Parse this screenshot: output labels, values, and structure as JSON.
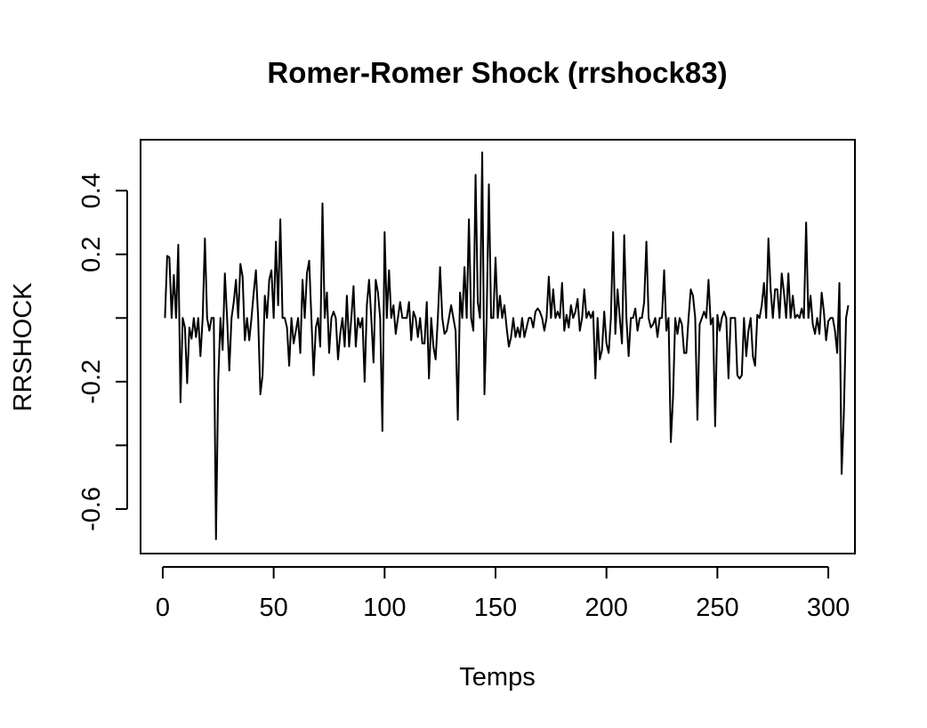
{
  "chart_data": {
    "type": "line",
    "title": "Romer-Romer Shock (rrshock83)",
    "xlabel": "Temps",
    "ylabel": "RRSHOCK",
    "xlim": [
      -10,
      312
    ],
    "ylim": [
      -0.74,
      0.56
    ],
    "x_ticks": [
      0,
      50,
      100,
      150,
      200,
      250,
      300
    ],
    "x_tick_labels": [
      "0",
      "50",
      "100",
      "150",
      "200",
      "250",
      "300"
    ],
    "y_ticks": [
      -0.6,
      -0.4,
      -0.2,
      0.0,
      0.2,
      0.4
    ],
    "y_tick_labels": [
      "-0.6",
      "",
      "-0.2",
      "",
      "0.2",
      "0.4"
    ],
    "grid": false,
    "legend": "none",
    "line_color": "#000000",
    "x_start": 1,
    "series": [
      {
        "values": [
          0.0,
          0.195,
          0.19,
          0.0,
          0.135,
          0.0,
          0.23,
          -0.265,
          0.0,
          -0.03,
          -0.205,
          -0.03,
          -0.065,
          0.0,
          -0.06,
          0.0,
          -0.12,
          0.0,
          0.25,
          0.0,
          -0.04,
          0.0,
          0.0,
          -0.695,
          -0.2,
          0.0,
          -0.1,
          0.14,
          0.0,
          -0.165,
          0.0,
          0.05,
          0.12,
          0.0,
          0.17,
          0.13,
          -0.07,
          0.0,
          -0.07,
          0.0,
          0.08,
          0.15,
          0.0,
          -0.24,
          -0.18,
          0.07,
          0.0,
          0.12,
          0.15,
          0.0,
          0.24,
          0.04,
          0.31,
          0.0,
          0.0,
          -0.03,
          -0.15,
          0.0,
          -0.08,
          -0.04,
          0.0,
          -0.11,
          0.12,
          0.0,
          0.14,
          0.18,
          0.0,
          -0.18,
          -0.03,
          0.0,
          -0.09,
          0.36,
          0.0,
          0.08,
          -0.11,
          0.0,
          0.02,
          0.0,
          -0.13,
          -0.05,
          0.0,
          -0.09,
          0.07,
          -0.09,
          0.0,
          0.1,
          -0.09,
          0.0,
          -0.03,
          0.0,
          -0.2,
          0.04,
          0.12,
          0.0,
          -0.14,
          0.12,
          0.08,
          0.0,
          -0.355,
          0.27,
          0.0,
          0.15,
          0.0,
          0.04,
          -0.05,
          0.0,
          0.05,
          0.0,
          0.0,
          0.0,
          0.05,
          -0.07,
          0.02,
          0.0,
          -0.06,
          0.0,
          -0.08,
          -0.08,
          0.05,
          -0.19,
          0.0,
          -0.09,
          -0.13,
          0.0,
          0.16,
          0.0,
          -0.05,
          -0.04,
          0.0,
          0.04,
          0.0,
          -0.04,
          -0.32,
          0.08,
          0.0,
          0.16,
          0.0,
          0.31,
          0.0,
          -0.04,
          0.45,
          0.05,
          0.0,
          0.52,
          -0.24,
          0.0,
          0.42,
          0.0,
          0.0,
          0.19,
          0.0,
          0.07,
          0.0,
          0.04,
          -0.03,
          -0.09,
          -0.06,
          0.0,
          -0.06,
          -0.03,
          -0.06,
          0.0,
          -0.06,
          -0.03,
          0.0,
          0.0,
          -0.03,
          0.02,
          0.03,
          0.02,
          0.0,
          -0.04,
          0.0,
          0.13,
          0.0,
          0.09,
          0.0,
          0.02,
          0.0,
          0.11,
          -0.04,
          0.01,
          -0.03,
          0.04,
          0.0,
          0.02,
          0.06,
          -0.04,
          0.0,
          0.09,
          0.0,
          0.02,
          0.0,
          0.02,
          -0.19,
          0.0,
          -0.13,
          -0.1,
          0.02,
          -0.08,
          -0.11,
          0.0,
          0.27,
          -0.05,
          0.09,
          0.0,
          -0.08,
          0.26,
          0.0,
          -0.12,
          0.0,
          0.0,
          0.03,
          -0.04,
          0.0,
          0.0,
          0.05,
          0.24,
          0.0,
          -0.03,
          -0.02,
          0.0,
          -0.06,
          0.0,
          0.0,
          0.15,
          -0.04,
          0.0,
          -0.39,
          -0.25,
          0.0,
          -0.05,
          0.0,
          -0.02,
          -0.11,
          -0.11,
          0.0,
          0.09,
          0.07,
          0.0,
          -0.32,
          -0.02,
          0.0,
          0.02,
          0.0,
          0.12,
          -0.02,
          0.0,
          -0.34,
          0.01,
          -0.04,
          0.0,
          0.02,
          0.0,
          -0.19,
          0.0,
          0.0,
          0.0,
          -0.18,
          -0.19,
          -0.18,
          0.0,
          -0.12,
          -0.04,
          0.0,
          -0.12,
          -0.15,
          0.01,
          0.0,
          0.04,
          0.11,
          0.0,
          0.25,
          0.09,
          0.0,
          0.09,
          0.09,
          0.0,
          0.14,
          0.08,
          0.0,
          0.14,
          0.0,
          0.07,
          0.0,
          0.01,
          0.0,
          0.03,
          0.0,
          0.3,
          0.0,
          0.07,
          -0.02,
          -0.05,
          0.0,
          -0.05,
          0.08,
          0.02,
          -0.07,
          -0.01,
          0.0,
          0.0,
          -0.04,
          -0.11,
          0.11,
          -0.49,
          -0.3,
          0.0,
          0.04
        ]
      }
    ]
  }
}
